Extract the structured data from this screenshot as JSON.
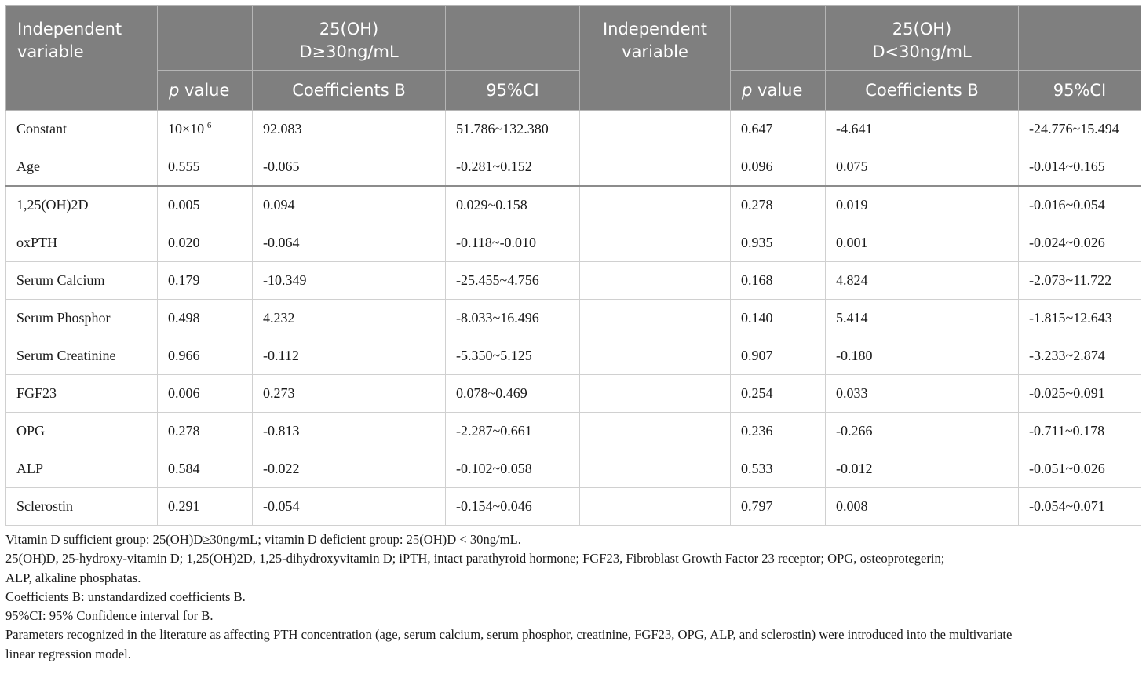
{
  "header": {
    "indep_var": "Independent variable",
    "group1_title": "25(OH)\nD≥30ng/mL",
    "group2_title": "25(OH)\nD<30ng/mL",
    "p_italic": "p",
    "p_rest": " value",
    "coef": "Coefficients B",
    "ci": "95%CI"
  },
  "rows": [
    {
      "name": "Constant",
      "p1_base": "10×10",
      "p1_exp": "-6",
      "b1": "92.083",
      "ci1": "51.786~132.380",
      "p2": "0.647",
      "b2": "-4.641",
      "ci2": "-24.776~15.494"
    },
    {
      "name": "Age",
      "p1": "0.555",
      "b1": "-0.065",
      "ci1": "-0.281~0.152",
      "p2": "0.096",
      "b2": "0.075",
      "ci2": "-0.014~0.165"
    },
    {
      "name": "1,25(OH)2D",
      "p1": "0.005",
      "b1": "0.094",
      "ci1": "0.029~0.158",
      "p2": "0.278",
      "b2": "0.019",
      "ci2": "-0.016~0.054"
    },
    {
      "name": "oxPTH",
      "p1": "0.020",
      "b1": "-0.064",
      "ci1": "-0.118~-0.010",
      "p2": "0.935",
      "b2": "0.001",
      "ci2": "-0.024~0.026"
    },
    {
      "name": "Serum Calcium",
      "p1": "0.179",
      "b1": "-10.349",
      "ci1": "-25.455~4.756",
      "p2": "0.168",
      "b2": "4.824",
      "ci2": "-2.073~11.722"
    },
    {
      "name": "Serum Phosphor",
      "p1": "0.498",
      "b1": "4.232",
      "ci1": "-8.033~16.496",
      "p2": "0.140",
      "b2": "5.414",
      "ci2": "-1.815~12.643"
    },
    {
      "name": "Serum Creatinine",
      "p1": "0.966",
      "b1": "-0.112",
      "ci1": "-5.350~5.125",
      "p2": "0.907",
      "b2": "-0.180",
      "ci2": "-3.233~2.874"
    },
    {
      "name": "FGF23",
      "p1": "0.006",
      "b1": "0.273",
      "ci1": "0.078~0.469",
      "p2": "0.254",
      "b2": "0.033",
      "ci2": "-0.025~0.091"
    },
    {
      "name": "OPG",
      "p1": "0.278",
      "b1": "-0.813",
      "ci1": "-2.287~0.661",
      "p2": "0.236",
      "b2": "-0.266",
      "ci2": "-0.711~0.178"
    },
    {
      "name": "ALP",
      "p1": "0.584",
      "b1": "-0.022",
      "ci1": "-0.102~0.058",
      "p2": "0.533",
      "b2": "-0.012",
      "ci2": "-0.051~0.026"
    },
    {
      "name": "Sclerostin",
      "p1": "0.291",
      "b1": "-0.054",
      "ci1": "-0.154~0.046",
      "p2": "0.797",
      "b2": "0.008",
      "ci2": "-0.054~0.071"
    }
  ],
  "notes": {
    "groups": "Vitamin D sufficient group: 25(OH)D≥30ng/mL; vitamin D deficient group: 25(OH)D < 30ng/mL.",
    "abbrev_line1": "25(OH)D, 25-hydroxy-vitamin D; 1,25(OH)2D, 1,25-dihydroxyvitamin D; iPTH, intact parathyroid hormone; FGF23, Fibroblast Growth Factor 23 receptor; OPG, osteoprotegerin;",
    "abbrev_line2": "ALP, alkaline phosphatas.",
    "coef": "Coefficients B: unstandardized coefficients B.",
    "ci": "95%CI: 95% Confidence interval for B.",
    "params_line1": "Parameters recognized in the literature as affecting PTH concentration (age, serum calcium, serum phosphor, creatinine, FGF23, OPG, ALP, and sclerostin) were introduced into the multivariate",
    "params_line2": "linear regression model."
  },
  "colors": {
    "header_bg": "#7f7f7f",
    "header_text": "#ffffff",
    "body_text": "#1a1a1a",
    "grid": "#d0d0d0"
  }
}
